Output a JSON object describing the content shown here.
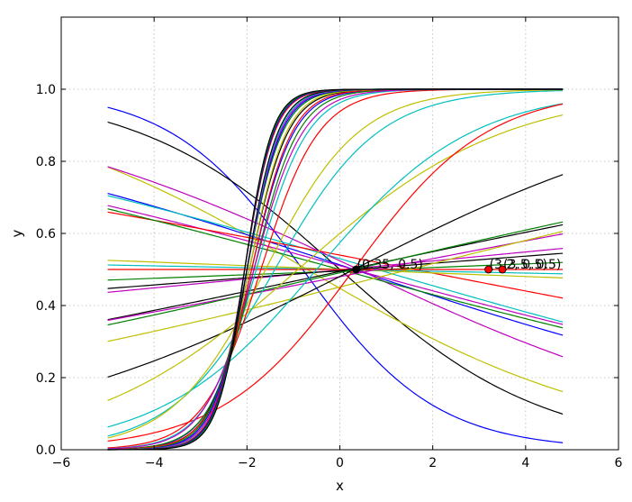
{
  "chart_data": {
    "type": "line",
    "title": "",
    "xlabel": "x",
    "ylabel": "y",
    "xlim": [
      -6,
      6
    ],
    "ylim": [
      0,
      1.2
    ],
    "x_domain": [
      -5,
      4.8
    ],
    "xticks": [
      -6,
      -4,
      -2,
      0,
      2,
      4,
      6
    ],
    "yticks": [
      0.0,
      0.2,
      0.4,
      0.6,
      0.8,
      1.0
    ],
    "xtick_labels": [
      "−6",
      "−4",
      "−2",
      "0",
      "2",
      "4",
      "6"
    ],
    "ytick_labels": [
      "0.0",
      "0.2",
      "0.4",
      "0.6",
      "0.8",
      "1.0"
    ],
    "grid": true,
    "legend": "none",
    "series": [
      {
        "color": "#0000ff",
        "k": -0.7,
        "x0": -0.8
      },
      {
        "color": "#000000",
        "k": -0.46,
        "x0": 0.0
      },
      {
        "color": "#bfbf00",
        "k": -0.3,
        "x0": -0.7
      },
      {
        "color": "#0000ff",
        "k": -0.17,
        "x0": 0.3
      },
      {
        "color": "#00bfbf",
        "k": -0.15,
        "x0": 0.8
      },
      {
        "color": "#bf00bf",
        "k": -0.14,
        "x0": 0.3
      },
      {
        "color": "#ff0000",
        "k": -0.1,
        "x0": 1.6
      },
      {
        "color": "#bf00bf",
        "k": -0.24,
        "x0": 0.4
      },
      {
        "color": "#008000",
        "k": -0.14,
        "x0": 0.0
      },
      {
        "color": "#bfbf00",
        "k": -0.02,
        "x0": 0.1
      },
      {
        "color": "#00bfbf",
        "k": -0.01,
        "x0": 0.0
      },
      {
        "color": "#008000",
        "k": 0.02,
        "x0": 0.9
      },
      {
        "color": "#bf00bf",
        "k": 0.05,
        "x0": 0.1
      },
      {
        "color": "#ff0000",
        "k": 0.0,
        "x0": 0.0
      },
      {
        "color": "#000000",
        "k": 0.04,
        "x0": 0.3
      },
      {
        "color": "#000000",
        "k": 0.11,
        "x0": 0.2
      },
      {
        "color": "#bf00bf",
        "k": 0.1,
        "x0": 0.8
      },
      {
        "color": "#008000",
        "k": 0.12,
        "x0": 0.3
      },
      {
        "color": "#bfbf00",
        "k": 0.13,
        "x0": 1.5
      },
      {
        "color": "#000000",
        "k": 0.26,
        "x0": 0.3
      },
      {
        "color": "#bfbf00",
        "k": 0.45,
        "x0": -0.9
      },
      {
        "color": "#00bfbf",
        "k": 0.6,
        "x0": -0.5
      },
      {
        "color": "#ff0000",
        "k": 0.7,
        "x0": 0.3
      },
      {
        "color": "#00bfbf",
        "k": 0.9,
        "x0": -1.4
      },
      {
        "color": "#bfbf00",
        "k": 1.0,
        "x0": -1.6
      },
      {
        "color": "#ff0000",
        "k": 1.6,
        "x0": -1.7
      },
      {
        "color": "#00bfbf",
        "k": 1.8,
        "x0": -1.8
      },
      {
        "color": "#0000ff",
        "k": 2.2,
        "x0": -1.9
      },
      {
        "color": "#008000",
        "k": 2.1,
        "x0": -1.85
      },
      {
        "color": "#bf00bf",
        "k": 1.9,
        "x0": -1.85
      },
      {
        "color": "#000000",
        "k": 2.4,
        "x0": -1.95
      },
      {
        "color": "#ff0000",
        "k": 2.3,
        "x0": -1.9
      },
      {
        "color": "#bfbf00",
        "k": 2.5,
        "x0": -1.95
      },
      {
        "color": "#008000",
        "k": 2.6,
        "x0": -2.0
      },
      {
        "color": "#0000ff",
        "k": 2.7,
        "x0": -2.0
      },
      {
        "color": "#bf00bf",
        "k": 2.8,
        "x0": -2.0
      },
      {
        "color": "#00bfbf",
        "k": 2.9,
        "x0": -2.0
      },
      {
        "color": "#000000",
        "k": 3.0,
        "x0": -2.0
      },
      {
        "color": "#ff0000",
        "k": 3.1,
        "x0": -2.05
      },
      {
        "color": "#0000ff",
        "k": 3.2,
        "x0": -2.05
      },
      {
        "color": "#008000",
        "k": 3.3,
        "x0": -2.05
      },
      {
        "color": "#000000",
        "k": 3.4,
        "x0": -2.05
      }
    ],
    "points": [
      {
        "x": 0.35,
        "y": 0.5,
        "color": "#000000",
        "label": "(0.35, 0.5)"
      },
      {
        "x": 3.2,
        "y": 0.5,
        "color": "#ff0000",
        "label": "(3.2, 0.5)"
      },
      {
        "x": 3.5,
        "y": 0.5,
        "color": "#ff0000",
        "label": "(3.5, 0.5)"
      }
    ]
  }
}
